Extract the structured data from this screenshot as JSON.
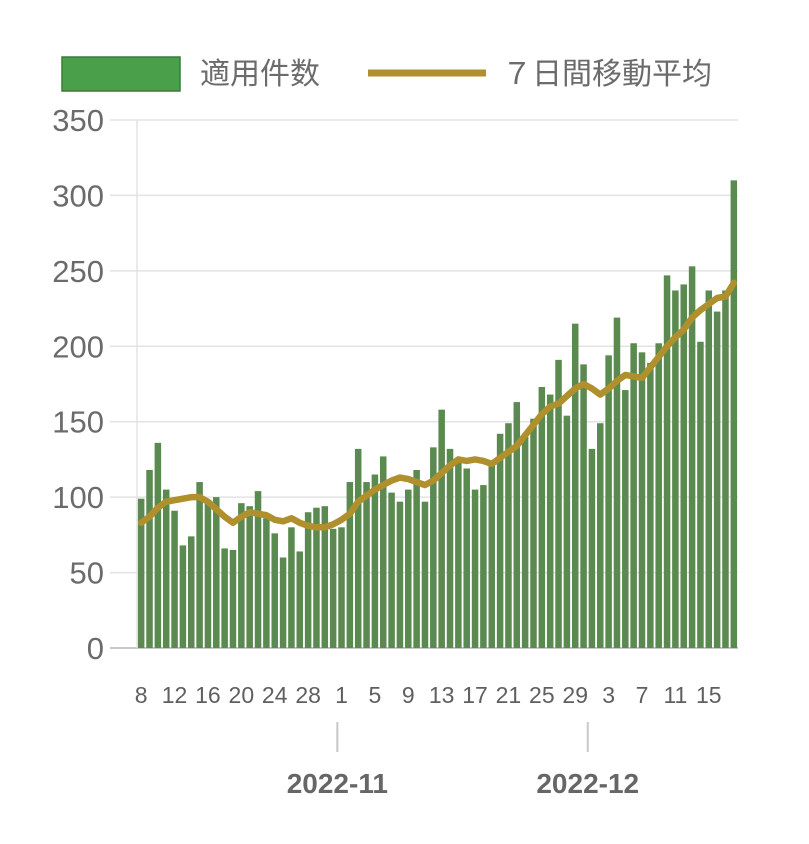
{
  "colors": {
    "bar": "#5a8a4f",
    "legend_bar_fill": "#4aa04a",
    "line": "#b0902c",
    "grid": "#e3e3e3",
    "axis": "#c8c8c8",
    "text": "#6b6b6b"
  },
  "chart_data": {
    "type": "bar",
    "legend": {
      "bar_label": "適用件数",
      "line_label": "７日間移動平均",
      "placement": "top"
    },
    "ylim": [
      0,
      350
    ],
    "yticks": [
      "0",
      "50",
      "100",
      "150",
      "200",
      "250",
      "300",
      "350"
    ],
    "ytick_values": [
      0,
      50,
      100,
      150,
      200,
      250,
      300,
      350
    ],
    "grid": true,
    "x_day_labels": [
      "8",
      "12",
      "16",
      "20",
      "24",
      "28",
      "1",
      "5",
      "9",
      "13",
      "17",
      "21",
      "25",
      "29",
      "3",
      "7",
      "11",
      "15"
    ],
    "x_day_label_indices": [
      0,
      4,
      8,
      12,
      16,
      20,
      24,
      28,
      32,
      36,
      40,
      44,
      48,
      52,
      56,
      60,
      64,
      68
    ],
    "month_labels": [
      "2022-11",
      "2022-12"
    ],
    "month_label_indices": [
      24,
      54
    ],
    "series": [
      {
        "name": "適用件数",
        "type": "bar",
        "values": [
          99,
          118,
          136,
          105,
          91,
          68,
          74,
          110,
          96,
          100,
          66,
          65,
          96,
          94,
          104,
          86,
          76,
          60,
          80,
          64,
          90,
          93,
          94,
          79,
          80,
          110,
          132,
          110,
          115,
          127,
          103,
          97,
          105,
          118,
          97,
          133,
          158,
          132,
          125,
          119,
          105,
          108,
          124,
          142,
          149,
          163,
          140,
          152,
          173,
          168,
          191,
          154,
          215,
          188,
          132,
          149,
          194,
          219,
          171,
          202,
          196,
          189,
          202,
          247,
          237,
          241,
          253,
          203,
          237,
          223,
          237,
          310
        ]
      },
      {
        "name": "７日間移動平均",
        "type": "line",
        "values": [
          83,
          87,
          93,
          97,
          98,
          99,
          100,
          100,
          97,
          92,
          87,
          83,
          87,
          90,
          89,
          88,
          85,
          84,
          86,
          83,
          81,
          80,
          80,
          82,
          85,
          89,
          97,
          101,
          105,
          108,
          111,
          113,
          112,
          110,
          108,
          111,
          116,
          121,
          125,
          124,
          125,
          124,
          122,
          126,
          130,
          134,
          141,
          148,
          155,
          160,
          162,
          167,
          172,
          175,
          172,
          168,
          172,
          177,
          181,
          180,
          179,
          186,
          193,
          200,
          206,
          211,
          219,
          224,
          228,
          232,
          233,
          242
        ]
      }
    ]
  }
}
